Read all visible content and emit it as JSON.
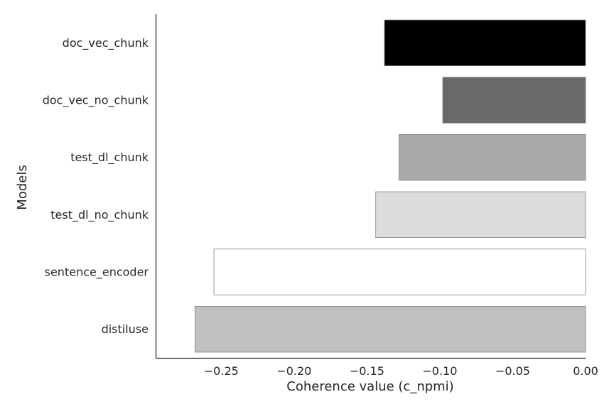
{
  "chart_data": {
    "type": "bar",
    "orientation": "horizontal",
    "title": "",
    "xlabel": "Coherence value (c_npmi)",
    "ylabel": "Models",
    "categories": [
      "doc_vec_chunk",
      "doc_vec_no_chunk",
      "test_dl_chunk",
      "test_dl_no_chunk",
      "sentence_encoder",
      "distiluse"
    ],
    "values": [
      -0.138,
      -0.098,
      -0.128,
      -0.144,
      -0.255,
      -0.268
    ],
    "bar_colors": [
      "#000000",
      "#696969",
      "#a9a9a9",
      "#dcdcdc",
      "#ffffff",
      "#c0c0c0"
    ],
    "bar_edge_color": "#808080",
    "xlim": [
      -0.295,
      0.0
    ],
    "xticks": [
      -0.25,
      -0.2,
      -0.15,
      -0.1,
      -0.05,
      0.0
    ],
    "xtick_labels": [
      "−0.25",
      "−0.20",
      "−0.15",
      "−0.10",
      "−0.05",
      "0.00"
    ],
    "grid": false,
    "legend": "none"
  }
}
